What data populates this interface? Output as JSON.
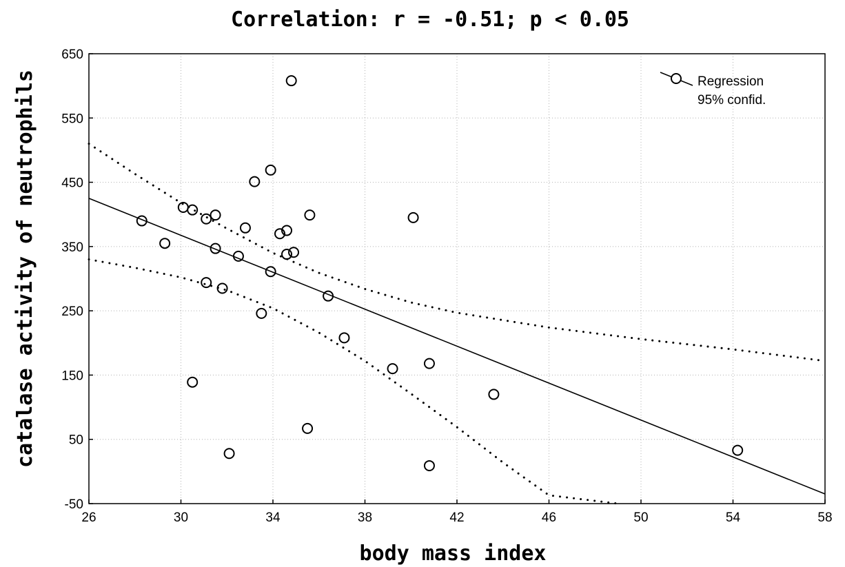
{
  "chart_data": {
    "type": "scatter",
    "title": "Correlation: r = -0.51; p < 0.05",
    "xlabel": "body mass index",
    "ylabel": "catalase activity of neutrophils",
    "xlim": [
      26,
      58
    ],
    "ylim": [
      -50,
      650
    ],
    "x_ticks": [
      26,
      30,
      34,
      38,
      42,
      46,
      50,
      54,
      58
    ],
    "y_ticks": [
      -50,
      50,
      150,
      250,
      350,
      450,
      550,
      650
    ],
    "grid": true,
    "legend_position": "top-right",
    "legend": [
      "Regression",
      "95% confid."
    ],
    "points": [
      {
        "x": 28.3,
        "y": 390
      },
      {
        "x": 29.3,
        "y": 355
      },
      {
        "x": 30.1,
        "y": 411
      },
      {
        "x": 30.5,
        "y": 407
      },
      {
        "x": 30.5,
        "y": 139
      },
      {
        "x": 31.1,
        "y": 393
      },
      {
        "x": 31.1,
        "y": 294
      },
      {
        "x": 31.5,
        "y": 399
      },
      {
        "x": 31.5,
        "y": 347
      },
      {
        "x": 31.8,
        "y": 285
      },
      {
        "x": 32.1,
        "y": 28
      },
      {
        "x": 32.5,
        "y": 335
      },
      {
        "x": 32.8,
        "y": 379
      },
      {
        "x": 33.2,
        "y": 451
      },
      {
        "x": 33.5,
        "y": 246
      },
      {
        "x": 33.9,
        "y": 469
      },
      {
        "x": 33.9,
        "y": 311
      },
      {
        "x": 34.3,
        "y": 370
      },
      {
        "x": 34.6,
        "y": 375
      },
      {
        "x": 34.6,
        "y": 338
      },
      {
        "x": 34.8,
        "y": 608
      },
      {
        "x": 34.9,
        "y": 341
      },
      {
        "x": 35.5,
        "y": 67
      },
      {
        "x": 35.6,
        "y": 399
      },
      {
        "x": 36.4,
        "y": 273
      },
      {
        "x": 37.1,
        "y": 208
      },
      {
        "x": 39.2,
        "y": 160
      },
      {
        "x": 40.1,
        "y": 395
      },
      {
        "x": 40.8,
        "y": 168
      },
      {
        "x": 40.8,
        "y": 9
      },
      {
        "x": 43.6,
        "y": 120
      },
      {
        "x": 54.2,
        "y": 33
      }
    ],
    "regression": {
      "x": [
        26,
        58
      ],
      "y": [
        425,
        -35
      ]
    },
    "confidence_upper": {
      "x": [
        26,
        28,
        30,
        32,
        34,
        36,
        38,
        40,
        42,
        46,
        50,
        54,
        58
      ],
      "y": [
        510,
        463,
        418,
        378,
        340,
        309,
        284,
        263,
        247,
        224,
        206,
        190,
        172
      ]
    },
    "confidence_lower": {
      "x": [
        26,
        28,
        30,
        32,
        34,
        36,
        38,
        40,
        42,
        44,
        46,
        49
      ],
      "y": [
        330,
        317,
        302,
        282,
        254,
        216,
        172,
        121,
        69,
        14,
        -37,
        -50
      ]
    },
    "colors": {
      "marks": "#000000",
      "grid": "#b0b0b0"
    }
  }
}
